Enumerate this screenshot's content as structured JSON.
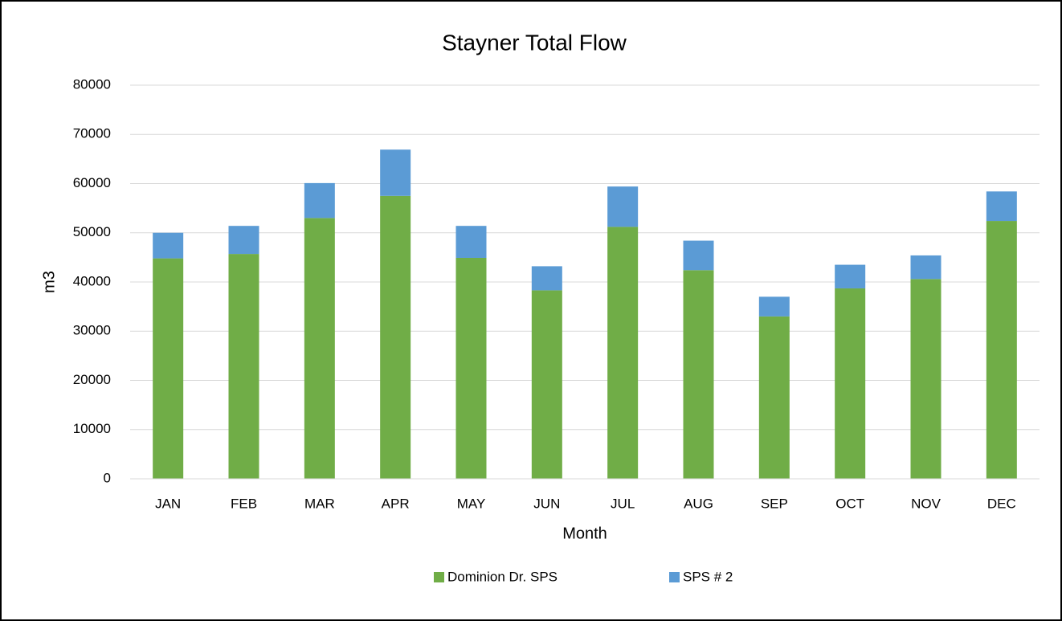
{
  "chart_data": {
    "type": "bar",
    "stacked": true,
    "title": "Stayner Total Flow",
    "x_label": "Month",
    "y_label": "m3",
    "categories": [
      "JAN",
      "FEB",
      "MAR",
      "APR",
      "MAY",
      "JUN",
      "JUL",
      "AUG",
      "SEP",
      "OCT",
      "NOV",
      "DEC"
    ],
    "series": [
      {
        "name": "Dominion Dr. SPS",
        "color": "#70ad47",
        "values": [
          44800,
          45700,
          53000,
          57500,
          44900,
          38300,
          51200,
          42400,
          33000,
          38700,
          40600,
          52400
        ]
      },
      {
        "name": "SPS # 2",
        "color": "#5b9bd5",
        "values": [
          5200,
          5700,
          7100,
          9400,
          6500,
          4900,
          8200,
          6000,
          4000,
          4800,
          4800,
          6000
        ]
      }
    ],
    "ylim": [
      0,
      80000
    ],
    "yticks": [
      0,
      10000,
      20000,
      30000,
      40000,
      50000,
      60000,
      70000,
      80000
    ],
    "grid": true,
    "legend": "bottom"
  }
}
